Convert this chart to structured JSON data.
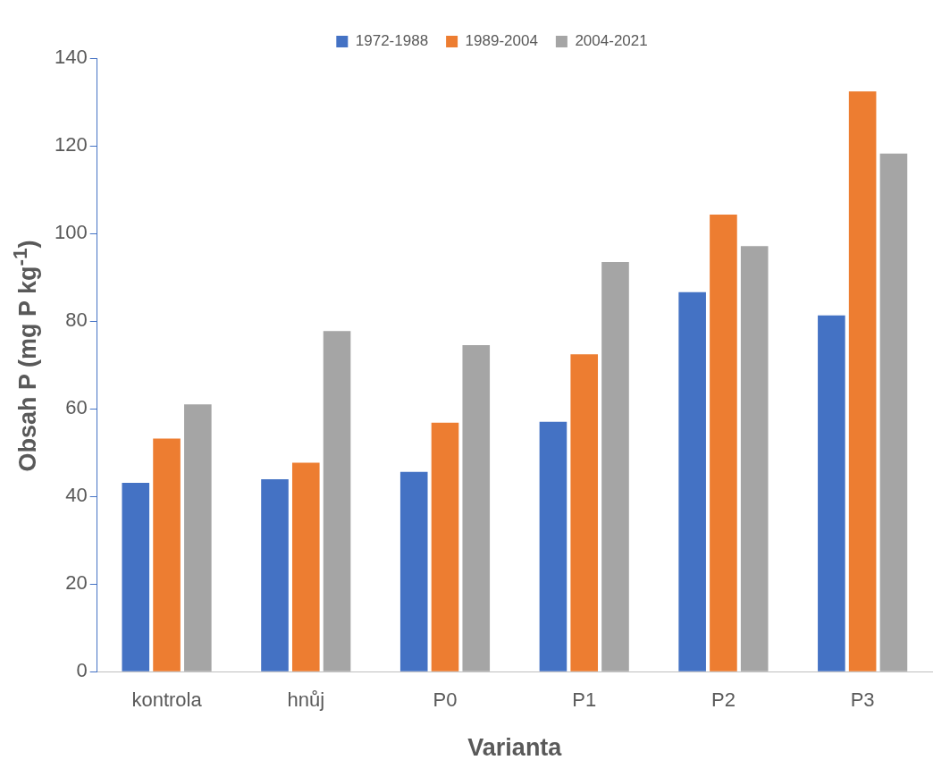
{
  "chart_data": {
    "type": "bar",
    "xlabel": "Varianta",
    "ylabel": "Obsah P (mg P kg$^{-1}$)",
    "categories": [
      "kontrola",
      "hnůj",
      "P0",
      "P1",
      "P2",
      "P3"
    ],
    "series": [
      {
        "name": "1972-1988",
        "color": "#4472c4",
        "values": [
          43.1,
          43.9,
          45.6,
          57.0,
          86.6,
          81.3
        ]
      },
      {
        "name": "1989-2004",
        "color": "#ed7d31",
        "values": [
          53.2,
          47.7,
          56.8,
          72.4,
          104.3,
          132.4
        ]
      },
      {
        "name": "2004-2021",
        "color": "#a5a5a5",
        "values": [
          61.0,
          77.7,
          74.5,
          93.5,
          97.1,
          118.2
        ]
      }
    ],
    "ylim": [
      0,
      140
    ],
    "yticks": [
      0,
      20,
      40,
      60,
      80,
      100,
      120,
      140
    ],
    "grid": false,
    "legend": "top"
  }
}
